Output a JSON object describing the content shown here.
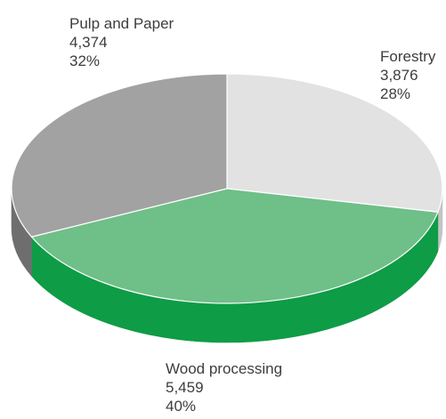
{
  "chart_data": {
    "type": "pie",
    "title": "",
    "slices": [
      {
        "label": "Forestry",
        "value_text": "3,876",
        "value": 3876,
        "percent_text": "28%",
        "color": "#e2e2e2",
        "side_color": "#c4c4c4"
      },
      {
        "label": "Wood processing",
        "value_text": "5,459",
        "value": 5459,
        "percent_text": "40%",
        "color": "#6fbf88",
        "side_color": "#0e9c46"
      },
      {
        "label": "Pulp and Paper",
        "value_text": "4,374",
        "value": 4374,
        "percent_text": "32%",
        "color": "#a2a2a2",
        "side_color": "#6e6e6e"
      }
    ],
    "style": "3d-pie",
    "legend": "none",
    "grid": false
  }
}
